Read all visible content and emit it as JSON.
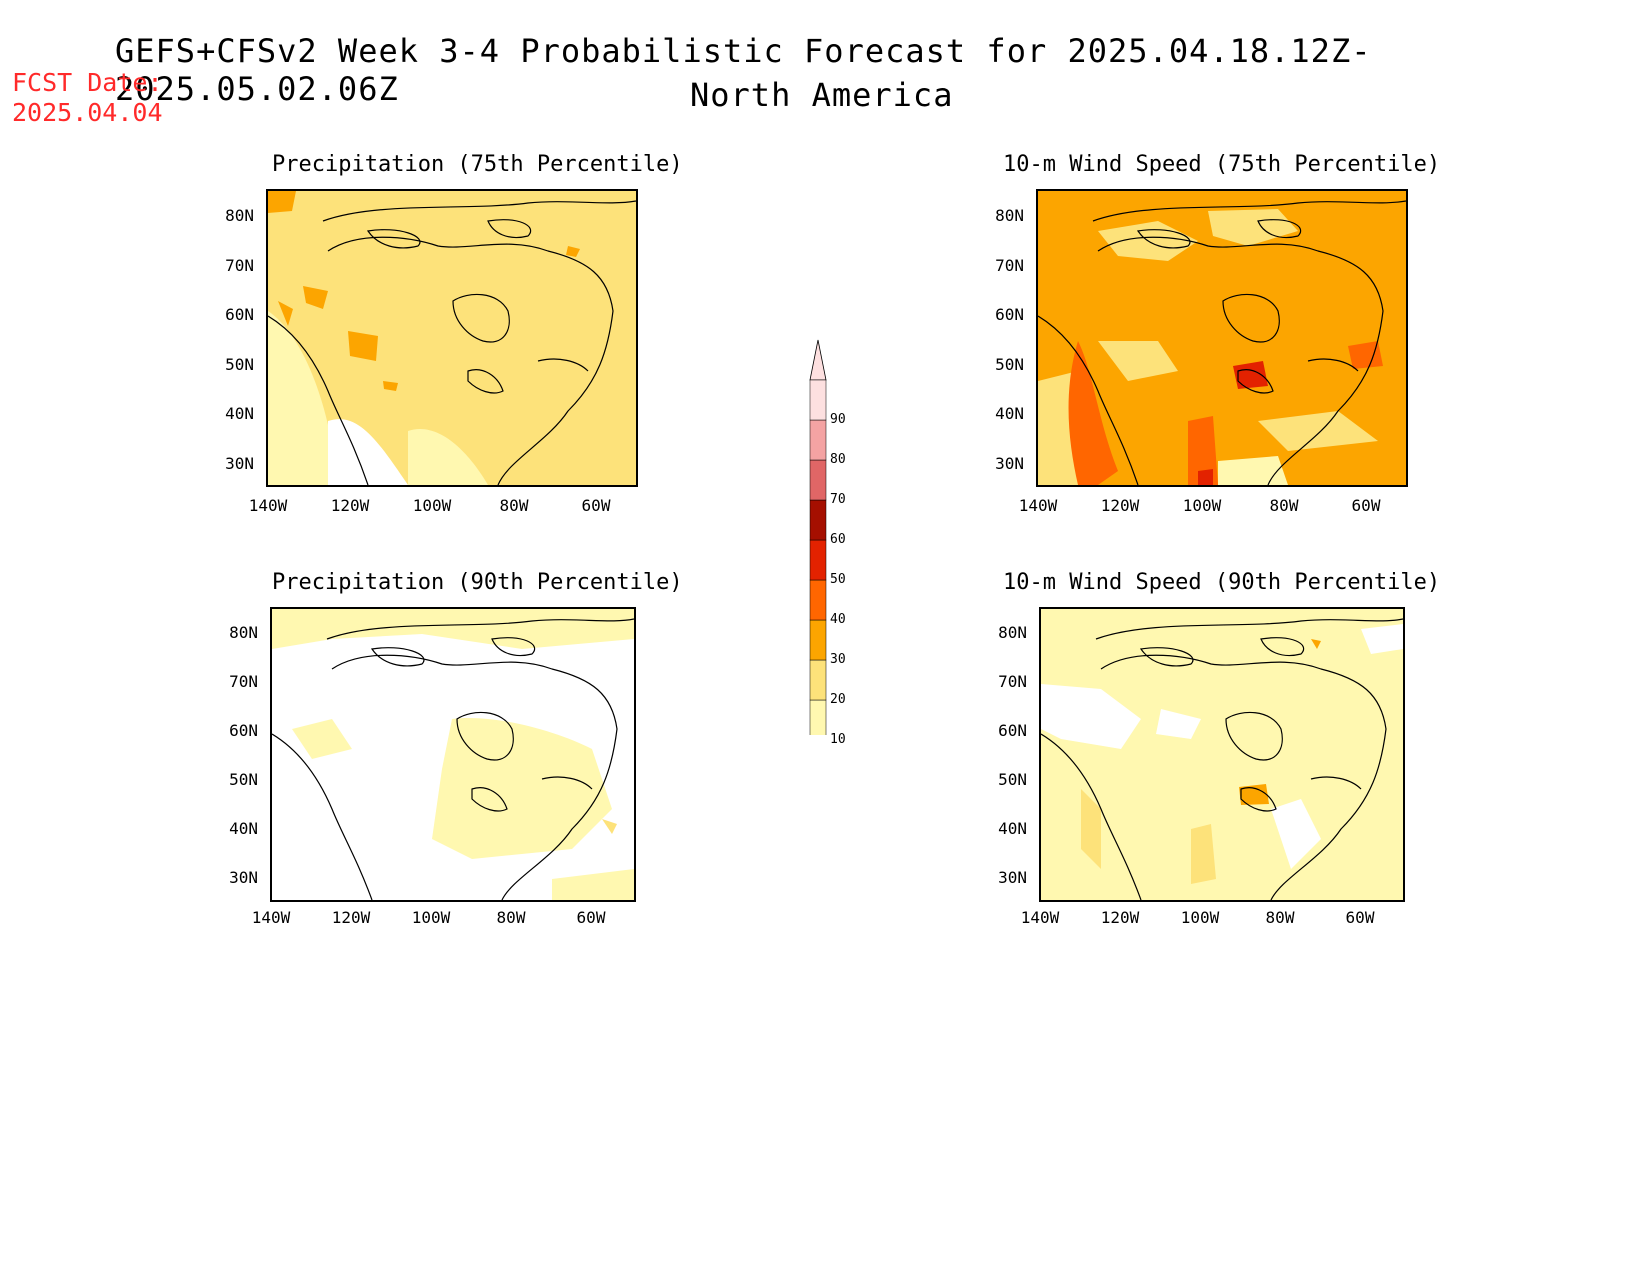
{
  "header": {
    "title": "GEFS+CFSv2 Week 3-4 Probabilistic Forecast for 2025.04.18.12Z-2025.05.02.06Z",
    "subtitle": "North America",
    "fcst_label": "FCST Date:",
    "fcst_date": "2025.04.04"
  },
  "panels": [
    {
      "id": "precip-75",
      "title": "Precipitation (75th Percentile)",
      "dominant_level": "20-30"
    },
    {
      "id": "wind-75",
      "title": "10-m Wind Speed (75th Percentile)",
      "dominant_level": "30-40"
    },
    {
      "id": "precip-90",
      "title": "Precipitation (90th Percentile)",
      "dominant_level": "<10"
    },
    {
      "id": "wind-90",
      "title": "10-m Wind Speed (90th Percentile)",
      "dominant_level": "10-20"
    }
  ],
  "axes": {
    "lat_ticks": [
      "80N",
      "70N",
      "60N",
      "50N",
      "40N",
      "30N"
    ],
    "lon_ticks": [
      "140W",
      "120W",
      "100W",
      "80W",
      "60W"
    ]
  },
  "colorbar": {
    "levels": [
      "10",
      "20",
      "30",
      "40",
      "50",
      "60",
      "70",
      "80",
      "90"
    ],
    "colors": [
      "#fff8b0",
      "#fde27a",
      "#fca500",
      "#ff6600",
      "#e32200",
      "#a50f00",
      "#e06666",
      "#f4a3a3",
      "#fde0e0"
    ]
  }
}
